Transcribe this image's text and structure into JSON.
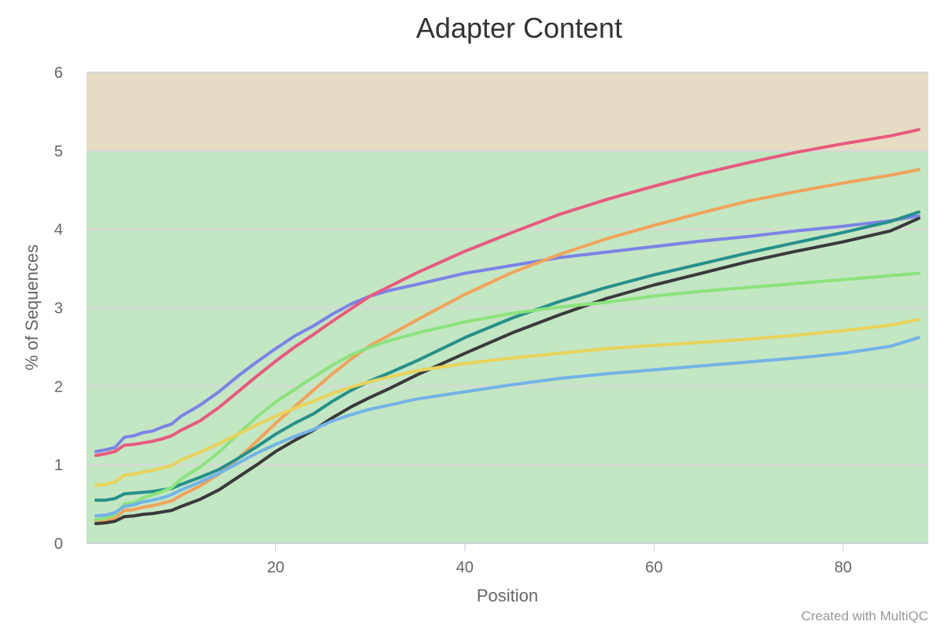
{
  "chart_data": {
    "type": "line",
    "title": "Adapter Content",
    "xlabel": "Position",
    "ylabel": "% of Sequences",
    "xlim": [
      0,
      89
    ],
    "ylim": [
      0,
      6
    ],
    "x_ticks": [
      20,
      40,
      60,
      80
    ],
    "y_ticks": [
      0,
      1,
      2,
      3,
      4,
      5,
      6
    ],
    "bands": [
      {
        "from": 0,
        "to": 5,
        "color": "#c3e6c3"
      },
      {
        "from": 5,
        "to": 6,
        "color": "#e6dcc3"
      }
    ],
    "grid": true,
    "series": [
      {
        "color": "#7b83e6",
        "points": [
          [
            1,
            1.17
          ],
          [
            2,
            1.19
          ],
          [
            3,
            1.22
          ],
          [
            4,
            1.35
          ],
          [
            5,
            1.37
          ],
          [
            6,
            1.41
          ],
          [
            7,
            1.43
          ],
          [
            8,
            1.48
          ],
          [
            9,
            1.52
          ],
          [
            10,
            1.62
          ],
          [
            12,
            1.76
          ],
          [
            14,
            1.93
          ],
          [
            16,
            2.13
          ],
          [
            18,
            2.31
          ],
          [
            20,
            2.48
          ],
          [
            22,
            2.64
          ],
          [
            24,
            2.77
          ],
          [
            26,
            2.92
          ],
          [
            28,
            3.05
          ],
          [
            30,
            3.15
          ],
          [
            32,
            3.22
          ],
          [
            35,
            3.3
          ],
          [
            40,
            3.44
          ],
          [
            45,
            3.54
          ],
          [
            50,
            3.64
          ],
          [
            55,
            3.71
          ],
          [
            60,
            3.78
          ],
          [
            65,
            3.85
          ],
          [
            70,
            3.91
          ],
          [
            75,
            3.98
          ],
          [
            80,
            4.04
          ],
          [
            85,
            4.11
          ],
          [
            88,
            4.17
          ]
        ]
      },
      {
        "color": "#e85a7e",
        "points": [
          [
            1,
            1.12
          ],
          [
            2,
            1.14
          ],
          [
            3,
            1.17
          ],
          [
            4,
            1.25
          ],
          [
            5,
            1.26
          ],
          [
            6,
            1.28
          ],
          [
            7,
            1.3
          ],
          [
            8,
            1.33
          ],
          [
            9,
            1.37
          ],
          [
            10,
            1.44
          ],
          [
            12,
            1.56
          ],
          [
            14,
            1.73
          ],
          [
            16,
            1.93
          ],
          [
            18,
            2.13
          ],
          [
            20,
            2.32
          ],
          [
            22,
            2.5
          ],
          [
            24,
            2.66
          ],
          [
            26,
            2.83
          ],
          [
            28,
            2.99
          ],
          [
            30,
            3.15
          ],
          [
            32,
            3.27
          ],
          [
            35,
            3.45
          ],
          [
            40,
            3.72
          ],
          [
            45,
            3.96
          ],
          [
            50,
            4.19
          ],
          [
            55,
            4.38
          ],
          [
            60,
            4.55
          ],
          [
            65,
            4.71
          ],
          [
            70,
            4.85
          ],
          [
            75,
            4.98
          ],
          [
            80,
            5.09
          ],
          [
            85,
            5.19
          ],
          [
            88,
            5.27
          ]
        ]
      },
      {
        "color": "#f2a35a",
        "points": [
          [
            1,
            0.28
          ],
          [
            2,
            0.29
          ],
          [
            3,
            0.32
          ],
          [
            4,
            0.42
          ],
          [
            5,
            0.43
          ],
          [
            6,
            0.46
          ],
          [
            7,
            0.48
          ],
          [
            8,
            0.51
          ],
          [
            9,
            0.54
          ],
          [
            10,
            0.61
          ],
          [
            12,
            0.73
          ],
          [
            14,
            0.88
          ],
          [
            16,
            1.08
          ],
          [
            18,
            1.3
          ],
          [
            20,
            1.53
          ],
          [
            22,
            1.74
          ],
          [
            24,
            1.95
          ],
          [
            26,
            2.16
          ],
          [
            28,
            2.35
          ],
          [
            30,
            2.52
          ],
          [
            32,
            2.65
          ],
          [
            35,
            2.85
          ],
          [
            40,
            3.17
          ],
          [
            45,
            3.45
          ],
          [
            50,
            3.68
          ],
          [
            55,
            3.88
          ],
          [
            60,
            4.05
          ],
          [
            65,
            4.21
          ],
          [
            70,
            4.36
          ],
          [
            75,
            4.48
          ],
          [
            80,
            4.59
          ],
          [
            85,
            4.69
          ],
          [
            88,
            4.76
          ]
        ]
      },
      {
        "color": "#26908a",
        "points": [
          [
            1,
            0.55
          ],
          [
            2,
            0.55
          ],
          [
            3,
            0.57
          ],
          [
            4,
            0.63
          ],
          [
            5,
            0.64
          ],
          [
            6,
            0.65
          ],
          [
            7,
            0.66
          ],
          [
            8,
            0.68
          ],
          [
            9,
            0.7
          ],
          [
            10,
            0.75
          ],
          [
            12,
            0.84
          ],
          [
            14,
            0.94
          ],
          [
            16,
            1.08
          ],
          [
            18,
            1.23
          ],
          [
            20,
            1.39
          ],
          [
            22,
            1.53
          ],
          [
            24,
            1.65
          ],
          [
            26,
            1.81
          ],
          [
            28,
            1.95
          ],
          [
            30,
            2.07
          ],
          [
            32,
            2.17
          ],
          [
            35,
            2.33
          ],
          [
            40,
            2.62
          ],
          [
            45,
            2.87
          ],
          [
            50,
            3.08
          ],
          [
            55,
            3.26
          ],
          [
            60,
            3.42
          ],
          [
            65,
            3.56
          ],
          [
            70,
            3.7
          ],
          [
            75,
            3.83
          ],
          [
            80,
            3.96
          ],
          [
            85,
            4.1
          ],
          [
            88,
            4.22
          ]
        ]
      },
      {
        "color": "#3a3a3a",
        "points": [
          [
            1,
            0.25
          ],
          [
            2,
            0.26
          ],
          [
            3,
            0.28
          ],
          [
            4,
            0.34
          ],
          [
            5,
            0.35
          ],
          [
            6,
            0.37
          ],
          [
            7,
            0.38
          ],
          [
            8,
            0.4
          ],
          [
            9,
            0.42
          ],
          [
            10,
            0.47
          ],
          [
            12,
            0.56
          ],
          [
            14,
            0.68
          ],
          [
            16,
            0.84
          ],
          [
            18,
            1.0
          ],
          [
            20,
            1.17
          ],
          [
            22,
            1.31
          ],
          [
            24,
            1.44
          ],
          [
            26,
            1.6
          ],
          [
            28,
            1.74
          ],
          [
            30,
            1.86
          ],
          [
            32,
            1.97
          ],
          [
            35,
            2.15
          ],
          [
            40,
            2.42
          ],
          [
            45,
            2.68
          ],
          [
            50,
            2.91
          ],
          [
            55,
            3.12
          ],
          [
            60,
            3.29
          ],
          [
            65,
            3.44
          ],
          [
            70,
            3.59
          ],
          [
            75,
            3.72
          ],
          [
            80,
            3.84
          ],
          [
            85,
            3.98
          ],
          [
            88,
            4.14
          ]
        ]
      },
      {
        "color": "#8be37d",
        "points": [
          [
            1,
            0.3
          ],
          [
            2,
            0.32
          ],
          [
            3,
            0.36
          ],
          [
            4,
            0.5
          ],
          [
            5,
            0.52
          ],
          [
            6,
            0.58
          ],
          [
            7,
            0.62
          ],
          [
            8,
            0.66
          ],
          [
            9,
            0.71
          ],
          [
            10,
            0.82
          ],
          [
            12,
            0.97
          ],
          [
            14,
            1.16
          ],
          [
            16,
            1.39
          ],
          [
            18,
            1.61
          ],
          [
            20,
            1.8
          ],
          [
            22,
            1.96
          ],
          [
            24,
            2.12
          ],
          [
            26,
            2.27
          ],
          [
            28,
            2.4
          ],
          [
            30,
            2.5
          ],
          [
            32,
            2.58
          ],
          [
            35,
            2.68
          ],
          [
            40,
            2.82
          ],
          [
            45,
            2.93
          ],
          [
            50,
            3.01
          ],
          [
            55,
            3.07
          ],
          [
            60,
            3.15
          ],
          [
            65,
            3.21
          ],
          [
            70,
            3.26
          ],
          [
            75,
            3.31
          ],
          [
            80,
            3.36
          ],
          [
            85,
            3.41
          ],
          [
            88,
            3.44
          ]
        ]
      },
      {
        "color": "#e8d35a",
        "points": [
          [
            1,
            0.74
          ],
          [
            2,
            0.75
          ],
          [
            3,
            0.78
          ],
          [
            4,
            0.87
          ],
          [
            5,
            0.88
          ],
          [
            6,
            0.91
          ],
          [
            7,
            0.93
          ],
          [
            8,
            0.96
          ],
          [
            9,
            0.99
          ],
          [
            10,
            1.06
          ],
          [
            12,
            1.16
          ],
          [
            14,
            1.27
          ],
          [
            16,
            1.39
          ],
          [
            18,
            1.51
          ],
          [
            20,
            1.62
          ],
          [
            22,
            1.72
          ],
          [
            24,
            1.81
          ],
          [
            26,
            1.91
          ],
          [
            28,
            1.99
          ],
          [
            30,
            2.06
          ],
          [
            32,
            2.12
          ],
          [
            35,
            2.2
          ],
          [
            40,
            2.29
          ],
          [
            45,
            2.36
          ],
          [
            50,
            2.42
          ],
          [
            55,
            2.48
          ],
          [
            60,
            2.52
          ],
          [
            65,
            2.56
          ],
          [
            70,
            2.6
          ],
          [
            75,
            2.65
          ],
          [
            80,
            2.71
          ],
          [
            85,
            2.78
          ],
          [
            88,
            2.85
          ]
        ]
      },
      {
        "color": "#73b3e8",
        "points": [
          [
            1,
            0.35
          ],
          [
            2,
            0.36
          ],
          [
            3,
            0.39
          ],
          [
            4,
            0.47
          ],
          [
            5,
            0.49
          ],
          [
            6,
            0.53
          ],
          [
            7,
            0.55
          ],
          [
            8,
            0.58
          ],
          [
            9,
            0.62
          ],
          [
            10,
            0.68
          ],
          [
            12,
            0.78
          ],
          [
            14,
            0.89
          ],
          [
            16,
            1.02
          ],
          [
            18,
            1.15
          ],
          [
            20,
            1.26
          ],
          [
            22,
            1.36
          ],
          [
            24,
            1.45
          ],
          [
            26,
            1.56
          ],
          [
            28,
            1.64
          ],
          [
            30,
            1.71
          ],
          [
            32,
            1.76
          ],
          [
            35,
            1.84
          ],
          [
            40,
            1.93
          ],
          [
            45,
            2.02
          ],
          [
            50,
            2.1
          ],
          [
            55,
            2.16
          ],
          [
            60,
            2.21
          ],
          [
            65,
            2.26
          ],
          [
            70,
            2.31
          ],
          [
            75,
            2.36
          ],
          [
            80,
            2.42
          ],
          [
            85,
            2.51
          ],
          [
            88,
            2.62
          ]
        ]
      }
    ]
  },
  "credit": "Created with MultiQC"
}
